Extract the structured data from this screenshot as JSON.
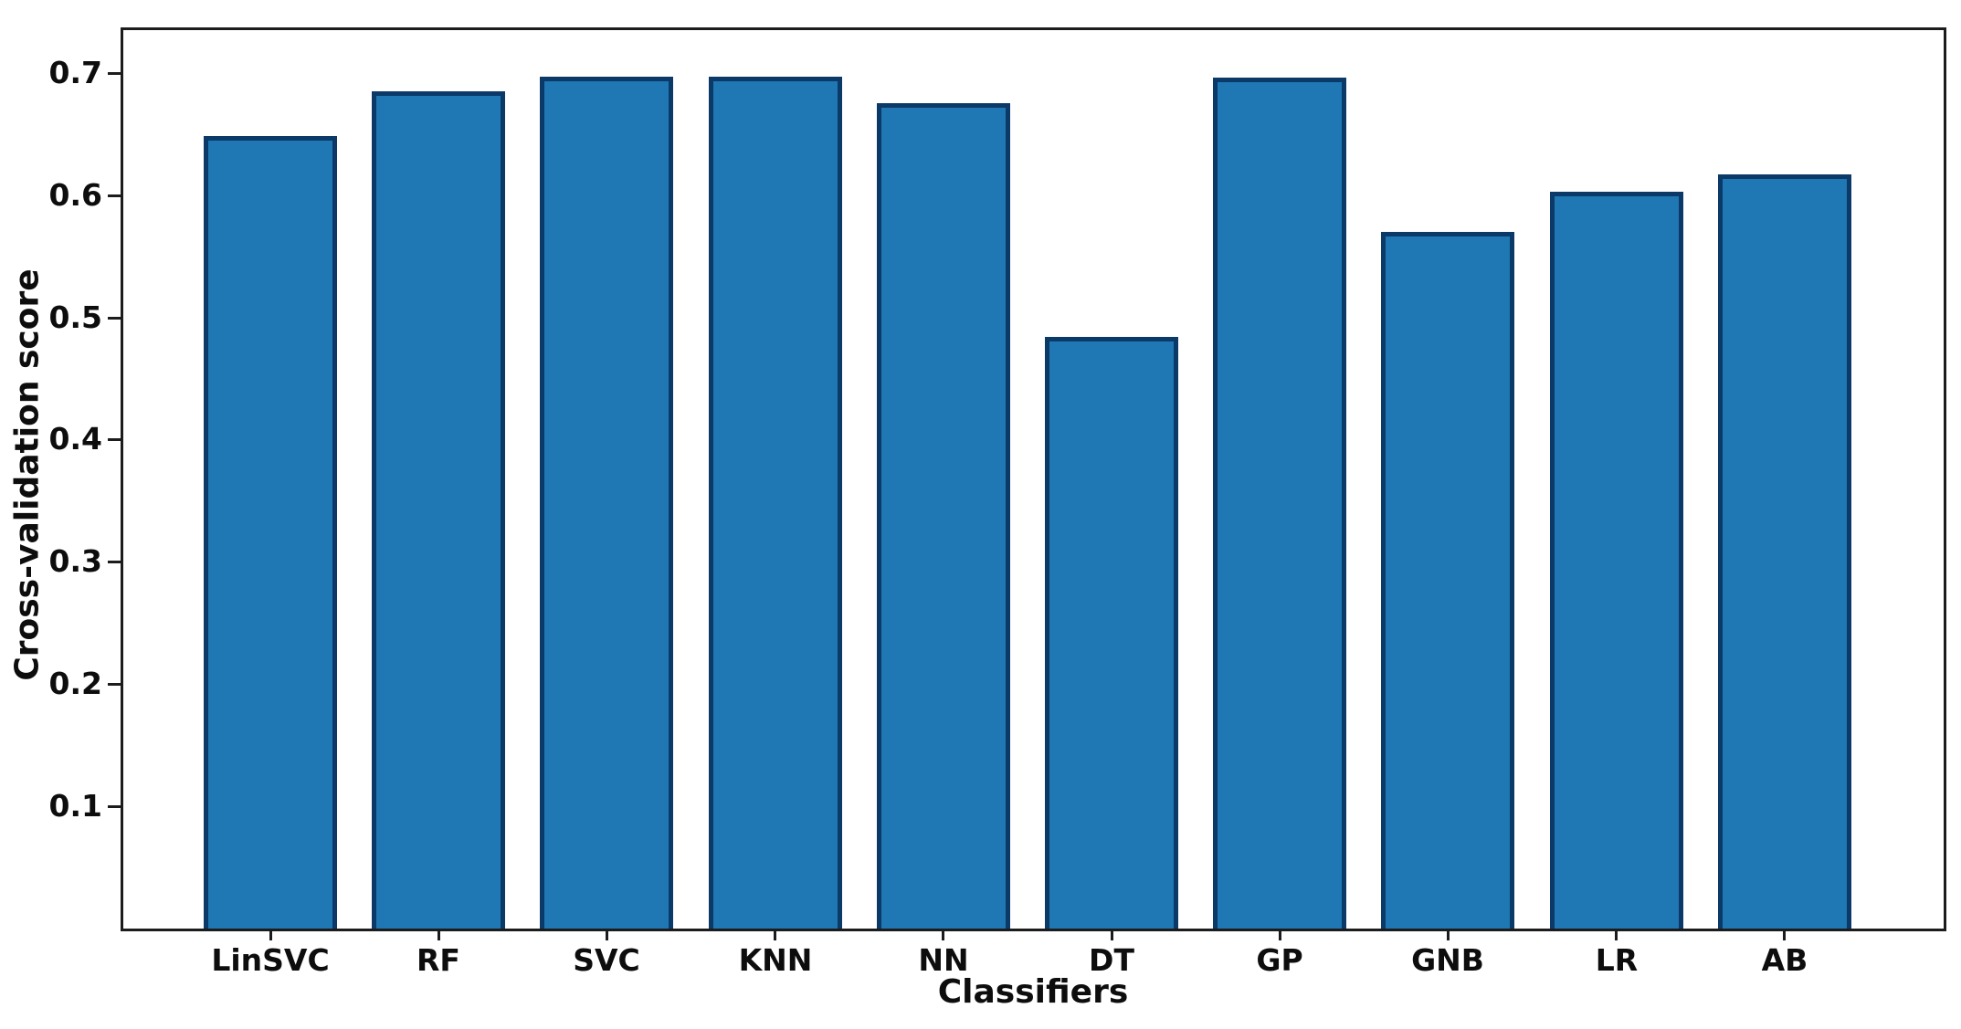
{
  "chart_data": {
    "type": "bar",
    "title": "",
    "xlabel": "Classifiers",
    "ylabel": "Cross-validation score",
    "categories": [
      "LinSVC",
      "RF",
      "SVC",
      "KNN",
      "NN",
      "DT",
      "GP",
      "GNB",
      "LR",
      "AB"
    ],
    "values": [
      0.648,
      0.685,
      0.697,
      0.697,
      0.675,
      0.484,
      0.696,
      0.57,
      0.603,
      0.617
    ],
    "yticks": [
      0.1,
      0.2,
      0.3,
      0.4,
      0.5,
      0.6,
      0.7
    ],
    "ylim": [
      0,
      0.735
    ],
    "grid": false,
    "legend": null,
    "bar_color": "#1f77b4",
    "bar_edge_color": "#0b3a68",
    "spine_color": "#1c1c1c",
    "background_color": "#ffffff"
  }
}
